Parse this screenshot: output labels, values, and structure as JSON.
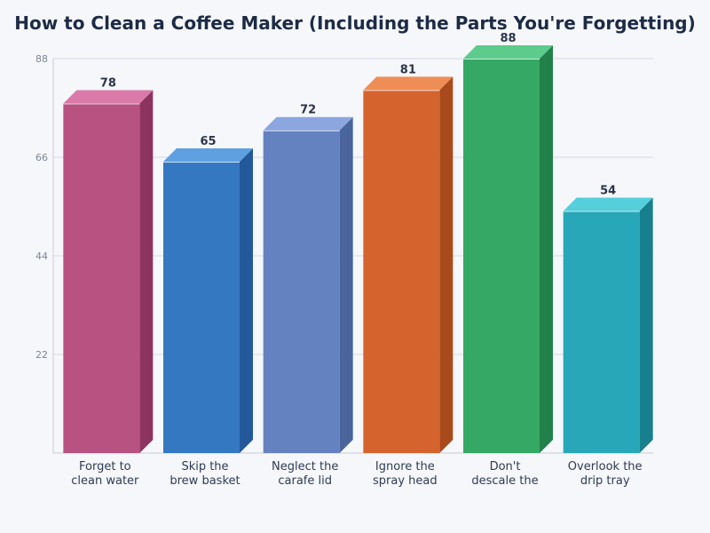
{
  "chart_data": {
    "type": "bar",
    "title": "How to Clean a Coffee Maker (Including the Parts You're Forgetting)",
    "xlabel": "",
    "ylabel": "",
    "ylim": [
      0,
      88
    ],
    "yticks": [
      22,
      44,
      66,
      88
    ],
    "grid": true,
    "categories": [
      [
        "Forget to",
        "clean water"
      ],
      [
        "Skip the",
        "brew basket"
      ],
      [
        "Neglect the",
        "carafe lid"
      ],
      [
        "Ignore the",
        "spray head"
      ],
      [
        "Don't",
        "descale the"
      ],
      [
        "Overlook the",
        "drip tray"
      ]
    ],
    "values": [
      78,
      65,
      72,
      81,
      88,
      54
    ],
    "colors": [
      {
        "front": "#b85280",
        "top": "#d97aa8",
        "side": "#8c3360"
      },
      {
        "front": "#3478c1",
        "top": "#5ea0e0",
        "side": "#23589a"
      },
      {
        "front": "#6582c0",
        "top": "#8ca6e0",
        "side": "#4a649c"
      },
      {
        "front": "#d5632e",
        "top": "#ee8d55",
        "side": "#a84a1c"
      },
      {
        "front": "#36a865",
        "top": "#5ccb8b",
        "side": "#22814a"
      },
      {
        "front": "#27a7b7",
        "top": "#55cfdb",
        "side": "#187f8c"
      }
    ]
  }
}
